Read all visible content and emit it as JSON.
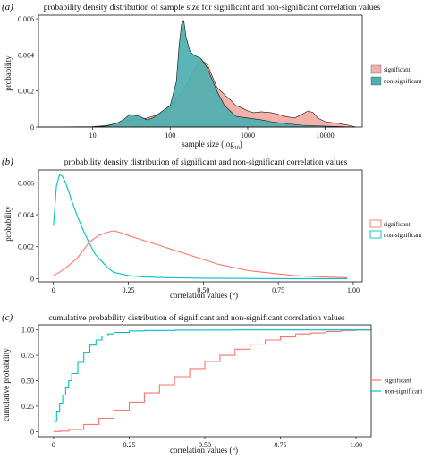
{
  "panels": {
    "a": {
      "label": "(a)",
      "title": "probability density distribution of sample size for significant and non-significant correlation values"
    },
    "b": {
      "label": "(b)",
      "title": "probability density distribution of significant and non-significant correlation values"
    },
    "c": {
      "label": "(c)",
      "title": "cumulative probability distribution of significant and non-significant correlation values"
    }
  },
  "colors": {
    "significant": "#F8766D",
    "non_significant": "#00BFC4",
    "sig_fill": "#F4B0AA",
    "nonsig_fill": "#4DAFB0"
  },
  "chart_data": [
    {
      "type": "area",
      "xlabel": "sample size (log",
      "xlabel_sub": "10",
      "xlabel_end": ")",
      "ylabel": "probability",
      "x_scale": "log10",
      "xlim": [
        2,
        30000
      ],
      "ylim": [
        0,
        0.0062
      ],
      "x_ticks": [
        10,
        100,
        1000,
        10000
      ],
      "x_tick_labels": [
        "10",
        "100",
        "1000",
        "10000"
      ],
      "y_ticks": [
        0,
        0.002,
        0.004,
        0.006
      ],
      "y_tick_labels": [
        "0",
        "0.002",
        "0.004",
        "0.006"
      ],
      "legend_position": "right",
      "series": [
        {
          "name": "significant",
          "x": [
            2,
            10,
            15,
            20,
            25,
            30,
            40,
            50,
            60,
            80,
            100,
            120,
            140,
            160,
            200,
            250,
            300,
            400,
            500,
            600,
            700,
            800,
            1000,
            1200,
            1500,
            2000,
            2500,
            3000,
            4000,
            5000,
            6000,
            7000,
            8000,
            10000,
            15000,
            20000,
            25000
          ],
          "values": [
            0,
            2e-05,
            8e-05,
            0.0002,
            0.00035,
            0.0004,
            0.00042,
            0.0005,
            0.0006,
            0.0008,
            0.0012,
            0.0016,
            0.0019,
            0.0023,
            0.0031,
            0.0037,
            0.0035,
            0.0022,
            0.0018,
            0.0015,
            0.0012,
            0.0011,
            0.0009,
            0.0008,
            0.00085,
            0.0008,
            0.0007,
            0.0006,
            0.0005,
            0.0007,
            0.0009,
            0.0008,
            0.0005,
            0.0003,
            0.0002,
            0.0001,
            0
          ]
        },
        {
          "name": "non-significant",
          "x": [
            2,
            10,
            15,
            20,
            25,
            30,
            40,
            50,
            60,
            80,
            100,
            120,
            130,
            140,
            150,
            160,
            180,
            200,
            250,
            300,
            400,
            500,
            700,
            1000,
            1500,
            2000,
            3000,
            5000,
            10000,
            25000
          ],
          "values": [
            0,
            1e-05,
            5e-05,
            0.0002,
            0.0004,
            0.0007,
            0.0006,
            0.0004,
            0.0005,
            0.0009,
            0.0012,
            0.0025,
            0.0045,
            0.0057,
            0.0059,
            0.005,
            0.0042,
            0.004,
            0.0038,
            0.0033,
            0.002,
            0.0012,
            0.0006,
            0.0005,
            0.0004,
            0.0003,
            0.0002,
            0.0001,
            5e-05,
            0
          ]
        }
      ]
    },
    {
      "type": "line",
      "xlabel": "correlation values (",
      "xlabel_var": "r",
      "xlabel_end": ")",
      "ylabel": "probability",
      "xlim": [
        -0.05,
        1.03
      ],
      "ylim": [
        -0.0002,
        0.0068
      ],
      "x_ticks": [
        0,
        0.25,
        0.5,
        0.75,
        1.0
      ],
      "x_tick_labels": [
        "0",
        "0.25",
        "0.50",
        "0.75",
        "1.00"
      ],
      "y_ticks": [
        0,
        0.002,
        0.004,
        0.006
      ],
      "y_tick_labels": [
        "0",
        "0.002",
        "0.004",
        "0.006"
      ],
      "legend_position": "right",
      "series": [
        {
          "name": "significant",
          "x": [
            0,
            0.02,
            0.05,
            0.08,
            0.1,
            0.12,
            0.15,
            0.18,
            0.2,
            0.22,
            0.25,
            0.3,
            0.35,
            0.4,
            0.45,
            0.5,
            0.55,
            0.6,
            0.65,
            0.7,
            0.75,
            0.8,
            0.85,
            0.9,
            0.95,
            0.98
          ],
          "values": [
            0.0002,
            0.0004,
            0.0008,
            0.0013,
            0.0018,
            0.0023,
            0.0027,
            0.0029,
            0.003,
            0.0029,
            0.0027,
            0.0024,
            0.0021,
            0.0018,
            0.0015,
            0.0012,
            0.0009,
            0.0007,
            0.0005,
            0.0004,
            0.0003,
            0.0002,
            0.00015,
            0.0001,
            8e-05,
            6e-05
          ]
        },
        {
          "name": "non-significant",
          "x": [
            0,
            0.01,
            0.02,
            0.03,
            0.04,
            0.05,
            0.06,
            0.08,
            0.1,
            0.12,
            0.14,
            0.16,
            0.18,
            0.2,
            0.25,
            0.3,
            0.4,
            0.5,
            0.6,
            0.7,
            0.8,
            0.9,
            0.98
          ],
          "values": [
            0.0033,
            0.0058,
            0.0065,
            0.0064,
            0.006,
            0.0055,
            0.0049,
            0.0039,
            0.003,
            0.0022,
            0.0015,
            0.0011,
            0.0007,
            0.0004,
            0.0002,
            0.0001,
            5e-05,
            3e-05,
            2e-05,
            1e-05,
            0,
            0,
            0
          ]
        }
      ]
    },
    {
      "type": "line",
      "step": true,
      "xlabel": "correlation values (",
      "xlabel_var": "r",
      "xlabel_end": ")",
      "ylabel": "cumulative probability",
      "xlim": [
        -0.05,
        1.05
      ],
      "ylim": [
        -0.05,
        1.05
      ],
      "x_ticks": [
        0,
        0.25,
        0.5,
        0.75,
        1.0
      ],
      "x_tick_labels": [
        "0",
        "0.25",
        "0.50",
        "0.75",
        "1.00"
      ],
      "y_ticks": [
        0,
        0.25,
        0.5,
        0.75,
        1.0
      ],
      "y_tick_labels": [
        "0",
        "0.25",
        "0.50",
        "0.75",
        "1.00"
      ],
      "legend_position": "right",
      "series": [
        {
          "name": "significant",
          "x": [
            0,
            0.02,
            0.05,
            0.1,
            0.15,
            0.2,
            0.25,
            0.3,
            0.35,
            0.4,
            0.45,
            0.5,
            0.55,
            0.6,
            0.65,
            0.7,
            0.75,
            0.8,
            0.85,
            0.9,
            0.95,
            1.0,
            1.05
          ],
          "values": [
            0,
            0.005,
            0.02,
            0.07,
            0.13,
            0.21,
            0.29,
            0.38,
            0.46,
            0.54,
            0.62,
            0.69,
            0.75,
            0.81,
            0.86,
            0.9,
            0.93,
            0.96,
            0.97,
            0.985,
            0.995,
            1.0,
            1.0
          ]
        },
        {
          "name": "non-significant",
          "x": [
            0,
            0.01,
            0.02,
            0.03,
            0.04,
            0.05,
            0.06,
            0.08,
            0.1,
            0.12,
            0.14,
            0.16,
            0.18,
            0.2,
            0.25,
            0.3,
            0.4,
            0.5,
            0.6,
            0.8,
            1.0,
            1.05
          ],
          "values": [
            0.1,
            0.2,
            0.28,
            0.36,
            0.43,
            0.5,
            0.57,
            0.68,
            0.78,
            0.85,
            0.9,
            0.94,
            0.96,
            0.975,
            0.99,
            0.995,
            0.998,
            0.999,
            1.0,
            1.0,
            1.0,
            1.0
          ]
        }
      ]
    }
  ]
}
